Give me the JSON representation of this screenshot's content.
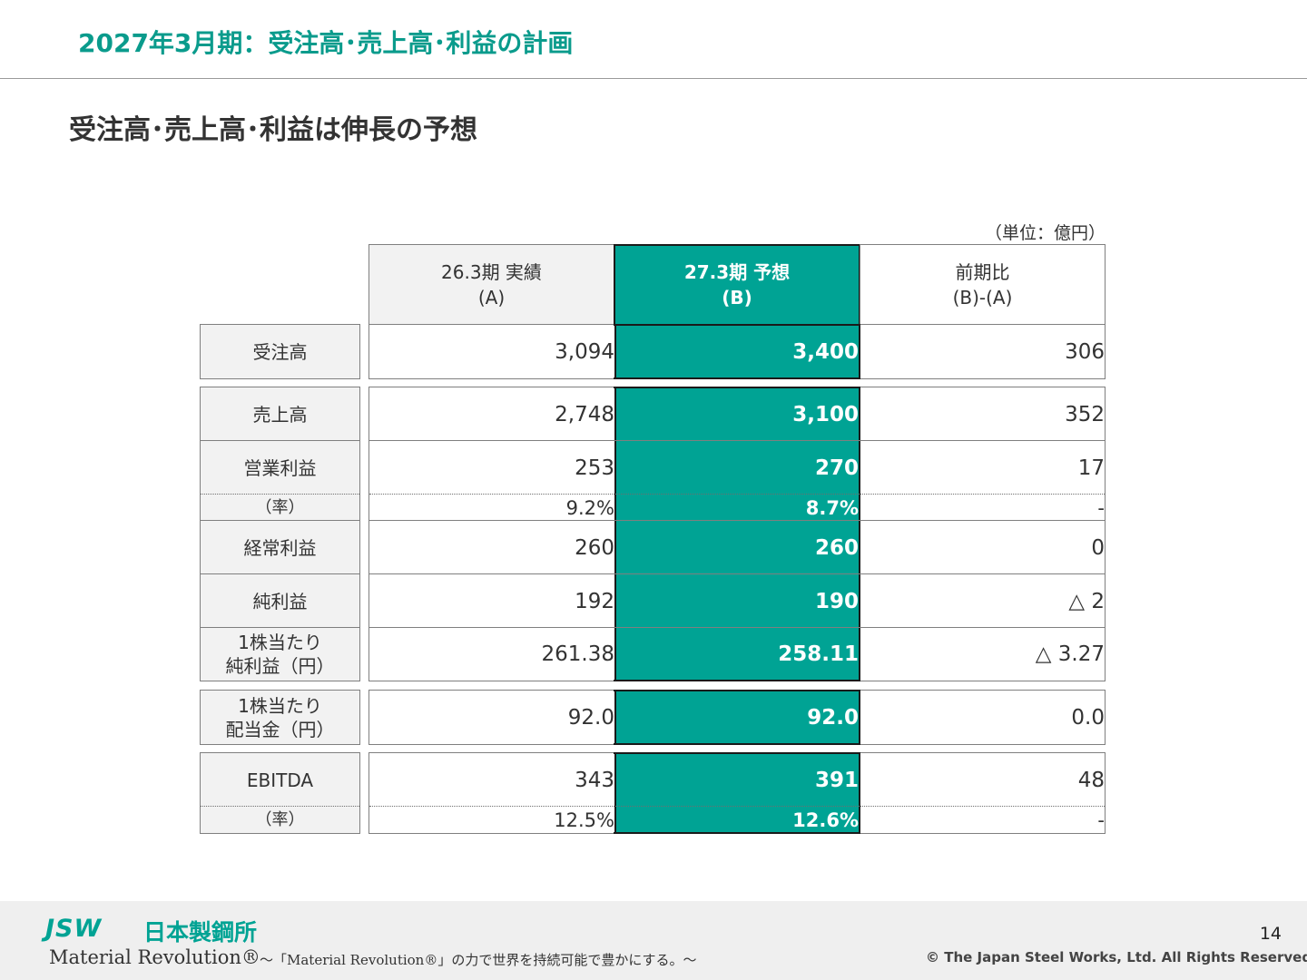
{
  "slide": {
    "title": "2027年3月期：受注高･売上高･利益の計画",
    "headline": "受注高･売上高･利益は伸長の予想",
    "unit": "（単位：億円）"
  },
  "table": {
    "headers": {
      "col_a": [
        "26.3期 実績",
        "(A)"
      ],
      "col_b": [
        "27.3期 予想",
        "(B)"
      ],
      "col_c": [
        "前期比",
        "(B)-(A)"
      ]
    },
    "rows": {
      "orders": {
        "label": "受注高",
        "a": "3,094",
        "b": "3,400",
        "c": "306"
      },
      "sales": {
        "label": "売上高",
        "a": "2,748",
        "b": "3,100",
        "c": "352"
      },
      "op_income": {
        "label": "営業利益",
        "a": "253",
        "b": "270",
        "c": "17"
      },
      "op_margin": {
        "label": "（率）",
        "a": "9.2%",
        "b": "8.7%",
        "c": "-"
      },
      "ordinary": {
        "label": "経常利益",
        "a": "260",
        "b": "260",
        "c": "0"
      },
      "net_income": {
        "label": "純利益",
        "a": "192",
        "b": "190",
        "c": "△ 2"
      },
      "eps": {
        "label_1": "1株当たり",
        "label_2": "純利益（円）",
        "a": "261.38",
        "b": "258.11",
        "c": "△ 3.27"
      },
      "dps": {
        "label_1": "1株当たり",
        "label_2": "配当金（円）",
        "a": "92.0",
        "b": "92.0",
        "c": "0.0"
      },
      "ebitda": {
        "label": "EBITDA",
        "a": "343",
        "b": "391",
        "c": "48"
      },
      "ebitda_margin": {
        "label": "（率）",
        "a": "12.5%",
        "b": "12.6%",
        "c": "-"
      }
    }
  },
  "footer": {
    "logo_mark": "JSW",
    "logo_name": "日本製鋼所",
    "motto_name": "Material Revolution®",
    "motto_text": "～「Material Revolution®」の力で世界を持続可能で豊かにする。～",
    "page_number": "14",
    "copyright": "© The Japan Steel Works, Ltd. All Rights Reserved."
  },
  "colors": {
    "accent": "#00a394",
    "title": "#0a9b8c",
    "label_bg": "#f2f2f2"
  }
}
